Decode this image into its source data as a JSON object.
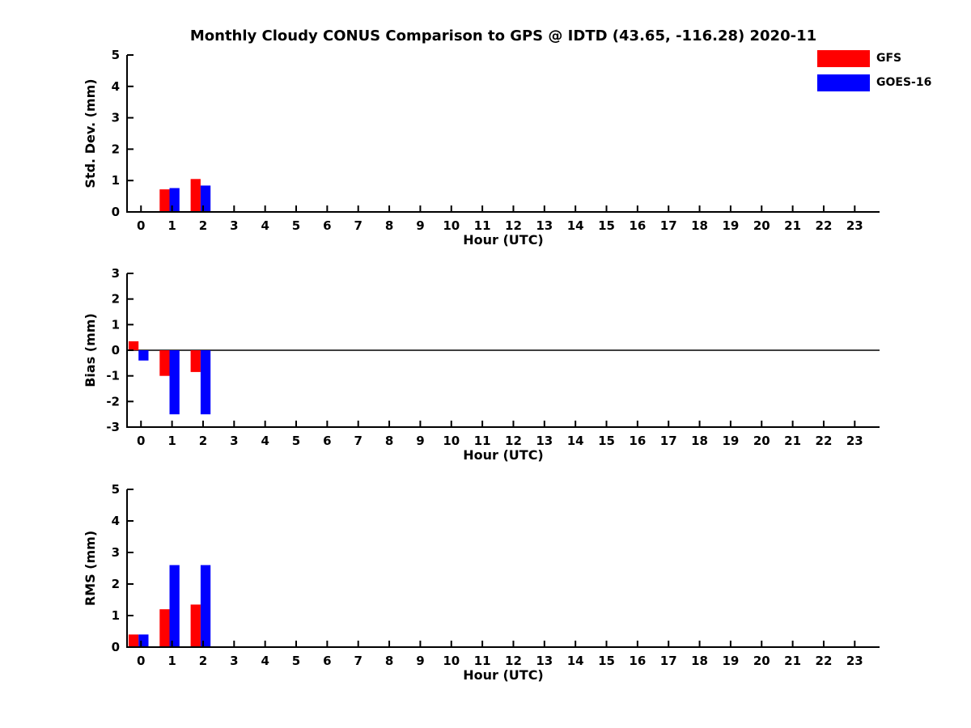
{
  "title": "Monthly Cloudy CONUS Comparison to GPS @ IDTD (43.65, -116.28) 2020-11",
  "legend": {
    "items": [
      {
        "label": "GFS",
        "color": "#ff0000"
      },
      {
        "label": "GOES-16",
        "color": "#0000ff"
      }
    ]
  },
  "colors": {
    "axis": "#000000",
    "background": "#ffffff",
    "text": "#000000"
  },
  "chart_data": [
    {
      "type": "bar",
      "name": "std-dev",
      "ylabel": "Std. Dev. (mm)",
      "xlabel": "Hour (UTC)",
      "ylim": [
        0,
        5
      ],
      "yticks": [
        0,
        1,
        2,
        3,
        4,
        5
      ],
      "zero_line": false,
      "grid": false,
      "legend_position": "top-right",
      "categories": [
        0,
        1,
        2,
        3,
        4,
        5,
        6,
        7,
        8,
        9,
        10,
        11,
        12,
        13,
        14,
        15,
        16,
        17,
        18,
        19,
        20,
        21,
        22,
        23
      ],
      "series": [
        {
          "name": "GFS",
          "color": "#ff0000",
          "values": [
            0,
            0.72,
            1.05,
            0,
            0,
            0,
            0,
            0,
            0,
            0,
            0,
            0,
            0,
            0,
            0,
            0,
            0,
            0,
            0,
            0,
            0,
            0,
            0,
            0
          ]
        },
        {
          "name": "GOES-16",
          "color": "#0000ff",
          "values": [
            0,
            0.76,
            0.84,
            0,
            0,
            0,
            0,
            0,
            0,
            0,
            0,
            0,
            0,
            0,
            0,
            0,
            0,
            0,
            0,
            0,
            0,
            0,
            0,
            0
          ]
        }
      ]
    },
    {
      "type": "bar",
      "name": "bias",
      "ylabel": "Bias (mm)",
      "xlabel": "Hour (UTC)",
      "ylim": [
        -3,
        3
      ],
      "yticks": [
        -3,
        -2,
        -1,
        0,
        1,
        2,
        3
      ],
      "zero_line": true,
      "grid": false,
      "categories": [
        0,
        1,
        2,
        3,
        4,
        5,
        6,
        7,
        8,
        9,
        10,
        11,
        12,
        13,
        14,
        15,
        16,
        17,
        18,
        19,
        20,
        21,
        22,
        23
      ],
      "series": [
        {
          "name": "GFS",
          "color": "#ff0000",
          "values": [
            0.35,
            -1.0,
            -0.85,
            0,
            0,
            0,
            0,
            0,
            0,
            0,
            0,
            0,
            0,
            0,
            0,
            0,
            0,
            0,
            0,
            0,
            0,
            0,
            0,
            0
          ]
        },
        {
          "name": "GOES-16",
          "color": "#0000ff",
          "values": [
            -0.4,
            -2.5,
            -2.5,
            0,
            0,
            0,
            0,
            0,
            0,
            0,
            0,
            0,
            0,
            0,
            0,
            0,
            0,
            0,
            0,
            0,
            0,
            0,
            0,
            0
          ]
        }
      ]
    },
    {
      "type": "bar",
      "name": "rms",
      "ylabel": "RMS (mm)",
      "xlabel": "Hour (UTC)",
      "ylim": [
        0,
        5
      ],
      "yticks": [
        0,
        1,
        2,
        3,
        4,
        5
      ],
      "zero_line": false,
      "grid": false,
      "categories": [
        0,
        1,
        2,
        3,
        4,
        5,
        6,
        7,
        8,
        9,
        10,
        11,
        12,
        13,
        14,
        15,
        16,
        17,
        18,
        19,
        20,
        21,
        22,
        23
      ],
      "series": [
        {
          "name": "GFS",
          "color": "#ff0000",
          "values": [
            0.4,
            1.2,
            1.35,
            0,
            0,
            0,
            0,
            0,
            0,
            0,
            0,
            0,
            0,
            0,
            0,
            0,
            0,
            0,
            0,
            0,
            0,
            0,
            0,
            0
          ]
        },
        {
          "name": "GOES-16",
          "color": "#0000ff",
          "values": [
            0.4,
            2.6,
            2.6,
            0,
            0,
            0,
            0,
            0,
            0,
            0,
            0,
            0,
            0,
            0,
            0,
            0,
            0,
            0,
            0,
            0,
            0,
            0,
            0,
            0
          ]
        }
      ]
    }
  ]
}
